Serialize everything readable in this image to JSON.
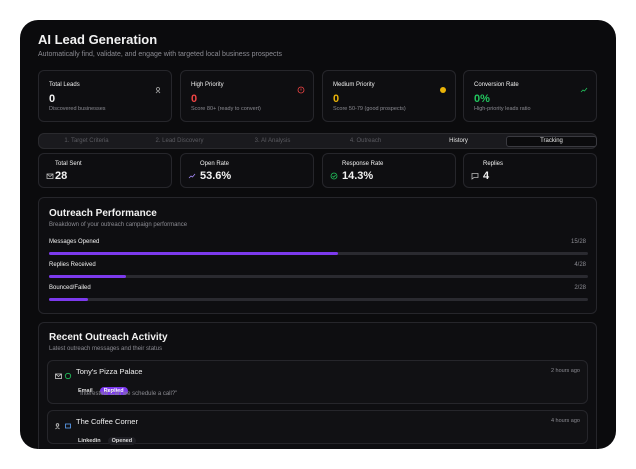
{
  "header": {
    "title": "AI Lead Generation",
    "subtitle": "Automatically find, validate, and engage with targeted local business prospects"
  },
  "stats": [
    {
      "label": "Total Leads",
      "value": "0",
      "note": "Discovered businesses"
    },
    {
      "label": "High Priority",
      "value": "0",
      "note": "Score 80+ (ready to convert)"
    },
    {
      "label": "Medium Priority",
      "value": "0",
      "note": "Score 50-79 (good prospects)"
    },
    {
      "label": "Conversion Rate",
      "value": "0%",
      "note": "High-priority leads ratio"
    }
  ],
  "tabs": [
    "1. Target Criteria",
    "2. Lead Discovery",
    "3. AI Analysis",
    "4. Outreach",
    "History",
    "Tracking"
  ],
  "metrics": [
    {
      "label": "Total Sent",
      "value": "28"
    },
    {
      "label": "Open Rate",
      "value": "53.6%"
    },
    {
      "label": "Response Rate",
      "value": "14.3%"
    },
    {
      "label": "Replies",
      "value": "4"
    }
  ],
  "performance": {
    "title": "Outreach Performance",
    "subtitle": "Breakdown of your outreach campaign performance",
    "rows": [
      {
        "label": "Messages Opened",
        "value": 15,
        "total": 28,
        "value_label": "15/28"
      },
      {
        "label": "Replies Received",
        "value": 4,
        "total": 28,
        "value_label": "4/28"
      },
      {
        "label": "Bounced/Failed",
        "value": 2,
        "total": 28,
        "value_label": "2/28"
      }
    ]
  },
  "activity": {
    "title": "Recent Outreach Activity",
    "subtitle": "Latest outreach messages and their status",
    "items": [
      {
        "name": "Tony's Pizza Palace",
        "time": "2 hours ago",
        "channel": "Email",
        "status": "Replied",
        "message": "\"Interested! Can we schedule a call?\""
      },
      {
        "name": "The Coffee Corner",
        "time": "4 hours ago",
        "channel": "Linkedin",
        "status": "Opened"
      }
    ]
  }
}
